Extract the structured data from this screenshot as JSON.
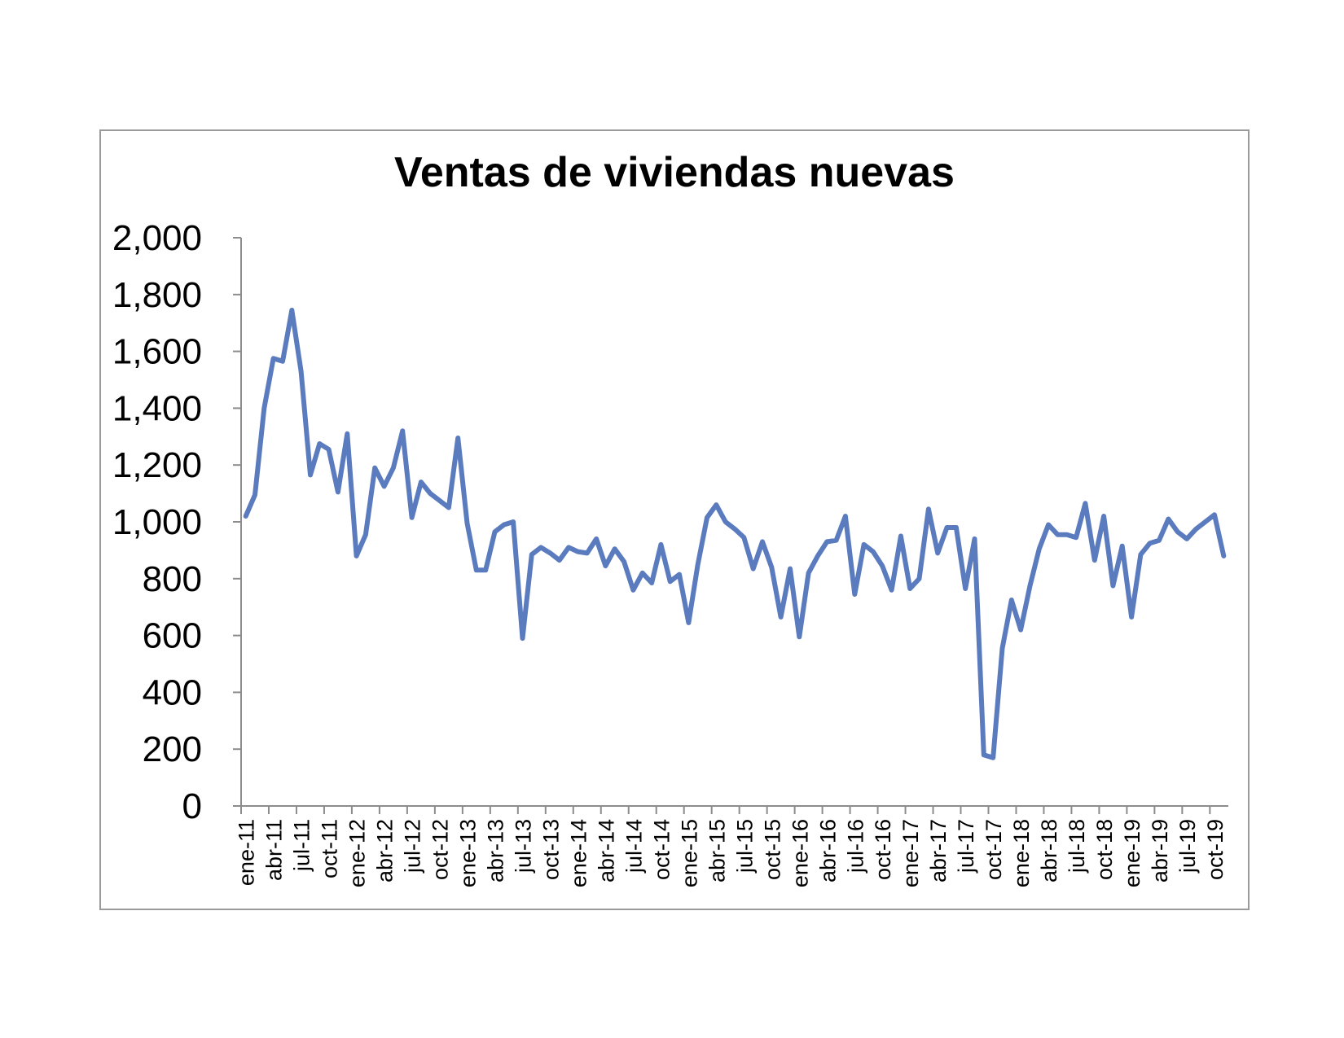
{
  "chart_data": {
    "type": "line",
    "title": "Ventas de viviendas nuevas",
    "xlabel": "",
    "ylabel": "",
    "ylim": [
      0,
      2000
    ],
    "y_ticks": [
      "0",
      "200",
      "400",
      "600",
      "800",
      "1,000",
      "1,200",
      "1,400",
      "1,600",
      "1,800",
      "2,000"
    ],
    "y_tick_values": [
      0,
      200,
      400,
      600,
      800,
      1000,
      1200,
      1400,
      1600,
      1800,
      2000
    ],
    "x_tick_labels": [
      "ene-11",
      "abr-11",
      "jul-11",
      "oct-11",
      "ene-12",
      "abr-12",
      "jul-12",
      "oct-12",
      "ene-13",
      "abr-13",
      "jul-13",
      "oct-13",
      "ene-14",
      "abr-14",
      "jul-14",
      "oct-14",
      "ene-15",
      "abr-15",
      "jul-15",
      "oct-15",
      "ene-16",
      "abr-16",
      "jul-16",
      "oct-16",
      "ene-17",
      "abr-17",
      "jul-17",
      "oct-17",
      "ene-18",
      "abr-18",
      "jul-18",
      "oct-18",
      "ene-19",
      "abr-19",
      "jul-19",
      "oct-19"
    ],
    "grid": false,
    "legend": "none",
    "line_color": "#5b7bbf",
    "series": [
      {
        "values": [
          1020,
          1095,
          1400,
          1575,
          1565,
          1745,
          1530,
          1165,
          1275,
          1255,
          1105,
          1310,
          880,
          955,
          1190,
          1125,
          1190,
          1320,
          1015,
          1140,
          1100,
          1075,
          1050,
          1295,
          995,
          830,
          830,
          965,
          990,
          1000,
          590,
          885,
          910,
          890,
          865,
          910,
          895,
          890,
          940,
          845,
          905,
          860,
          760,
          820,
          785,
          920,
          790,
          815,
          645,
          850,
          1015,
          1060,
          1000,
          975,
          945,
          835,
          930,
          840,
          665,
          835,
          595,
          820,
          880,
          930,
          935,
          1020,
          745,
          920,
          895,
          845,
          760,
          950,
          765,
          800,
          1045,
          890,
          980,
          980,
          765,
          940,
          180,
          170,
          555,
          725,
          620,
          775,
          905,
          990,
          955,
          955,
          945,
          1065,
          865,
          1020,
          775,
          915,
          665,
          885,
          925,
          935,
          1010,
          965,
          940,
          975,
          1000,
          1025,
          880
        ]
      }
    ]
  }
}
